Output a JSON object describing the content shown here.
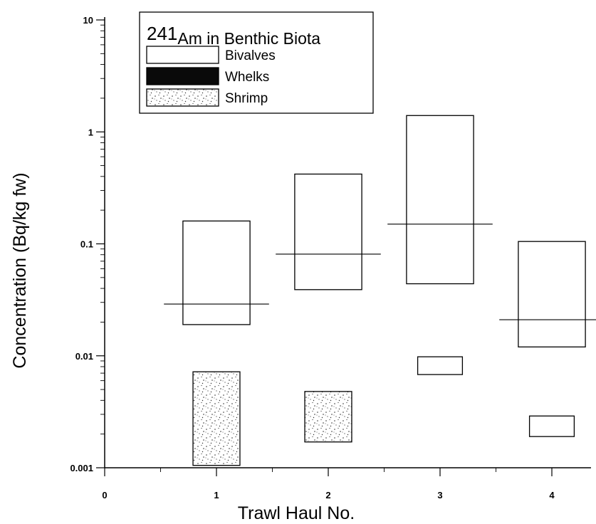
{
  "chart_data": {
    "type": "box",
    "legend": {
      "title_superscript": "241",
      "title_text": "Am in Benthic Biota",
      "placement": "top-left"
    },
    "xlabel": "Trawl Haul No.",
    "ylabel": "Concentration (Bq/kg fw)",
    "x_ticks": [
      0,
      1,
      2,
      3,
      4
    ],
    "xlim": [
      0,
      4.35
    ],
    "y_scale": "log",
    "ylim": [
      0.001,
      10
    ],
    "y_ticks": [
      0.001,
      0.01,
      0.1,
      1,
      10
    ],
    "y_tick_labels": [
      "0.001",
      "0.01",
      "0.1",
      "1",
      "10"
    ],
    "series": [
      {
        "name": "Bivalves",
        "fill": "none",
        "boxes": [
          {
            "x": 1,
            "low": 0.019,
            "high": 0.16,
            "median": 0.029
          },
          {
            "x": 2,
            "low": 0.039,
            "high": 0.42,
            "median": 0.081
          },
          {
            "x": 3,
            "low": 0.044,
            "high": 1.4,
            "median": 0.15
          },
          {
            "x": 4,
            "low": 0.012,
            "high": 0.105,
            "median": 0.021
          }
        ]
      },
      {
        "name": "Whelks",
        "fill": "solid",
        "boxes": [
          {
            "x": 3,
            "low": 0.0068,
            "high": 0.0098
          },
          {
            "x": 4,
            "low": 0.0019,
            "high": 0.0029
          }
        ]
      },
      {
        "name": "Shrimp",
        "fill": "stipple",
        "boxes": [
          {
            "x": 1,
            "low": 0.00105,
            "high": 0.0072
          },
          {
            "x": 2,
            "low": 0.0017,
            "high": 0.0048
          }
        ]
      }
    ]
  }
}
